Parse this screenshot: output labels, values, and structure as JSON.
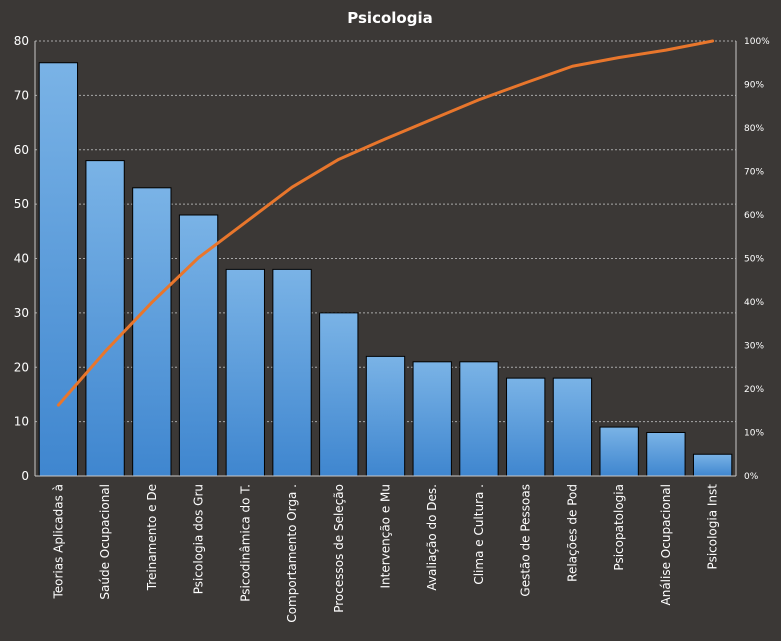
{
  "chart_data": {
    "type": "bar",
    "title": "Psicologia",
    "xlabel": "",
    "ylabel": "",
    "ylim": [
      0,
      80
    ],
    "y_ticks": [
      "0",
      "10",
      "20",
      "30",
      "40",
      "50",
      "60",
      "70",
      "80"
    ],
    "y2lim": [
      0,
      100
    ],
    "y2_ticks": [
      "0%",
      "10%",
      "20%",
      "30%",
      "40%",
      "50%",
      "60%",
      "70%",
      "80%",
      "90%",
      "100%"
    ],
    "grid": "horizontal dotted",
    "legend": "none",
    "categories": [
      "Teorias Aplicadas à",
      "Saúde Ocupacional",
      "Treinamento e De",
      "Psicologia dos Gru",
      "Psicodinâmica do T.",
      "Comportamento  Orga .",
      "Processos de Seleção",
      "Intervenção e Mu",
      "Avaliação do Des.",
      "Clima e Cultura  .",
      "Gestão de Pessoas",
      "Relações de Pod",
      "Psicopatologia",
      "Análise Ocupacional",
      "Psicologia Inst"
    ],
    "series": [
      {
        "type": "bar",
        "axis": "left",
        "values": [
          76,
          58,
          53,
          48,
          38,
          38,
          30,
          22,
          21,
          21,
          18,
          18,
          9,
          8,
          4
        ]
      },
      {
        "type": "line",
        "axis": "right",
        "unit": "%",
        "values": [
          16.3,
          28.6,
          39.9,
          50.2,
          58.3,
          66.4,
          72.8,
          77.5,
          82.0,
          86.5,
          90.4,
          94.2,
          96.2,
          97.9,
          100
        ]
      }
    ],
    "colors": {
      "background": "#3b3836",
      "bar_fill_top": "#7ab3e6",
      "bar_fill_bottom": "#3f86cf",
      "bar_stroke": "#000000",
      "line": "#e8762c",
      "grid": "#a8a8a8",
      "text": "#ffffff"
    }
  }
}
